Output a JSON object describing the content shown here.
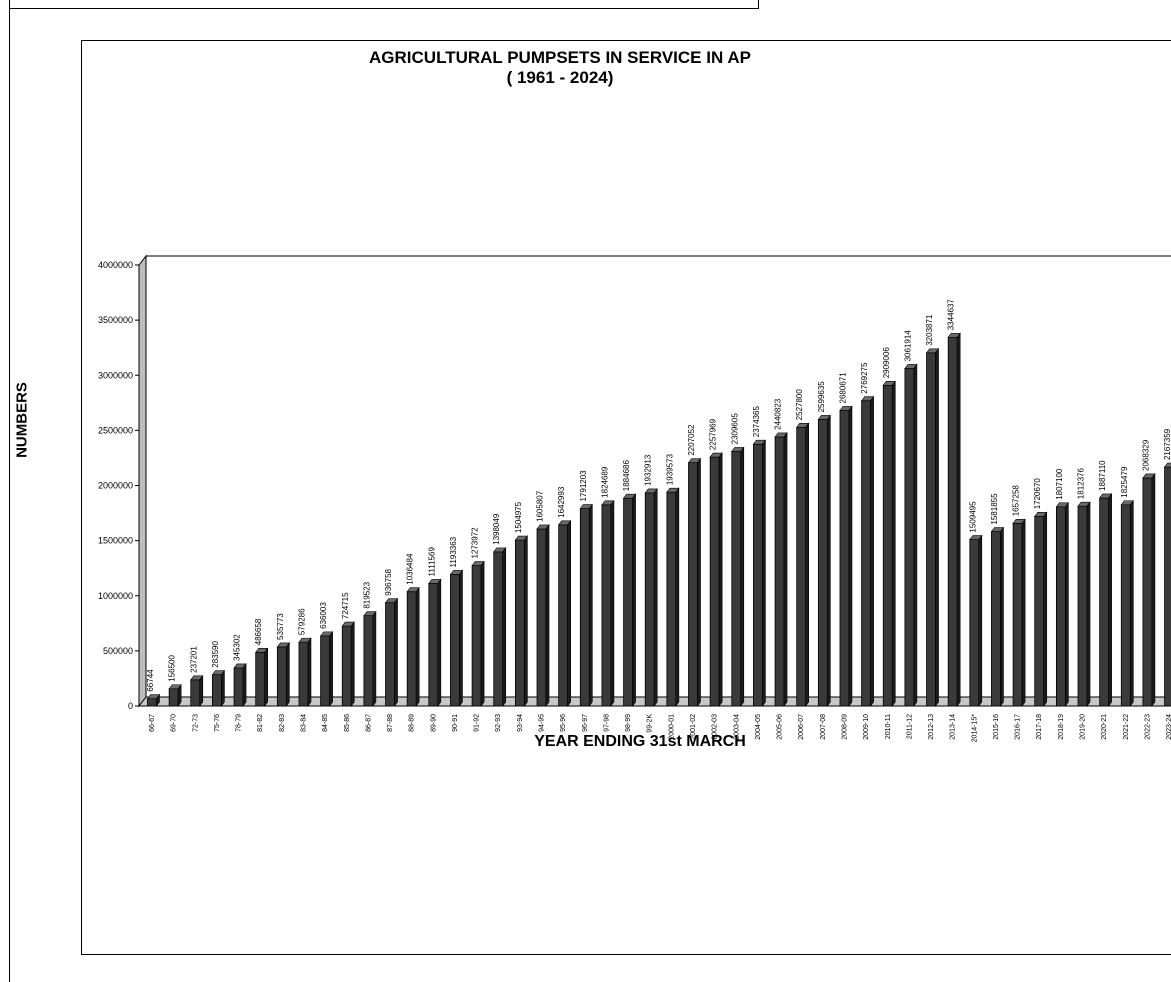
{
  "chart_data": {
    "type": "bar",
    "title": "AGRICULTURAL PUMPSETS IN SERVICE IN AP",
    "subtitle": "( 1961 - 2024)",
    "xlabel": "YEAR ENDING 31st MARCH",
    "ylabel": "NUMBERS",
    "ylim": [
      0,
      4000000
    ],
    "yticks": [
      "0",
      "500000",
      "1000000",
      "1500000",
      "2000000",
      "2500000",
      "3000000",
      "3500000",
      "4000000"
    ],
    "grid": false,
    "categories": [
      "66-67",
      "69-70",
      "72-73",
      "75-76",
      "78-79",
      "81-82",
      "82-83",
      "83-84",
      "84-85",
      "85-86",
      "86-87",
      "87-88",
      "88-89",
      "89-90",
      "90-91",
      "91-92",
      "92-93",
      "93-94",
      "94-95",
      "95-96",
      "96-97",
      "97-98",
      "98-99",
      "99-2K",
      "2000-01",
      "2001-02",
      "2002-03",
      "2003-04",
      "2004-05",
      "2005-06",
      "2006-07",
      "2007-08",
      "2008-09",
      "2009-10",
      "2010-11",
      "2011-12",
      "2012-13",
      "2013-14",
      "2014-15*",
      "2015-16",
      "2016-17",
      "2017-18",
      "2018-19",
      "2019-20",
      "2020-21",
      "2021-22",
      "2022-23",
      "2023-24"
    ],
    "values": [
      66744,
      156500,
      237201,
      283590,
      345302,
      486658,
      535773,
      579286,
      636003,
      724715,
      819523,
      936758,
      1036484,
      1111569,
      1193363,
      1273972,
      1398049,
      1504975,
      1605807,
      1642993,
      1791203,
      1824689,
      1884686,
      1932913,
      1939573,
      2207052,
      2257969,
      2309605,
      2374365,
      2440823,
      2527800,
      2599635,
      2680671,
      2769275,
      2909006,
      3061914,
      3203871,
      3344637,
      1509495,
      1581855,
      1657258,
      1720670,
      1807100,
      1812376,
      1887110,
      1825479,
      2068329,
      2167359
    ],
    "value_labels": [
      "66744",
      "156500",
      "237201",
      "283590",
      "345302",
      "486658",
      "535773",
      "579286",
      "636003",
      "724715",
      "819523",
      "936758",
      "1036484",
      "1111569",
      "1193363",
      "1273972",
      "1398049",
      "1504975",
      "1605807",
      "1642993",
      "1791203",
      "1824689",
      "1884686",
      "1932913",
      "1939573",
      "2207052",
      "2257969",
      "2309605",
      "2374365",
      "2440823",
      "2527800",
      "2599635",
      "2680671",
      "2769275",
      "2909006",
      "3061914",
      "3203871",
      "3344637",
      "1509495",
      "1581855",
      "1657258",
      "1720670",
      "1807100",
      "1812376",
      "1887110",
      "1825479",
      "2068329",
      "2167359"
    ],
    "bar_color": "#3a3a3a"
  }
}
